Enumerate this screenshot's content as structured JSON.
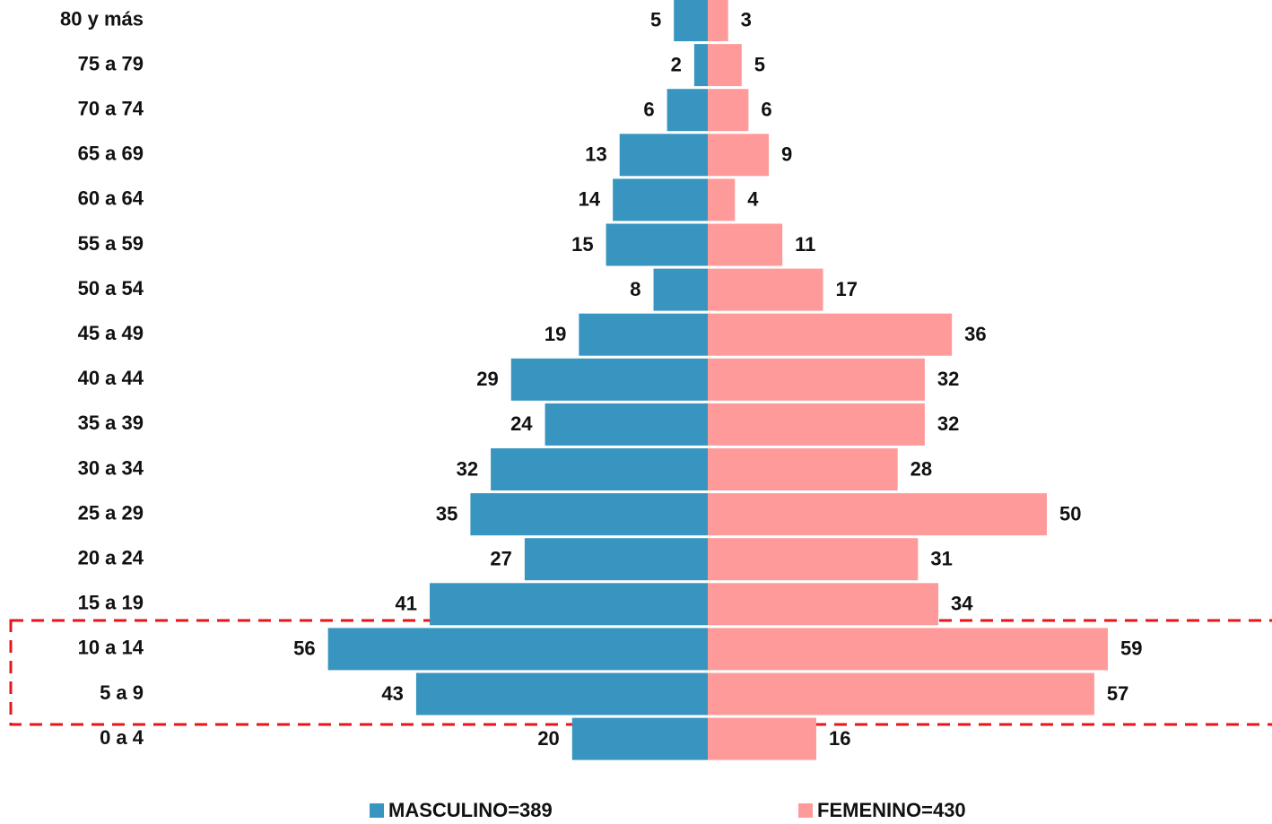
{
  "chart_data": {
    "type": "pyramid",
    "categories": [
      "80 y más",
      "75 a 79",
      "70 a 74",
      "65 a 69",
      "60 a 64",
      "55 a 59",
      "50 a 54",
      "45 a 49",
      "40 a 44",
      "35 a 39",
      "30 a 34",
      "25 a 29",
      "20 a 24",
      "15 a 19",
      "10 a 14",
      "5 a 9",
      "0 a 4"
    ],
    "series": [
      {
        "name": "MASCULINO=389",
        "color": "#3795bf",
        "values": [
          5,
          2,
          6,
          13,
          14,
          15,
          8,
          19,
          29,
          24,
          32,
          35,
          27,
          41,
          56,
          43,
          20
        ]
      },
      {
        "name": "FEMENINO=430",
        "color": "#ff9a9a",
        "values": [
          3,
          5,
          6,
          9,
          4,
          11,
          17,
          36,
          32,
          32,
          28,
          50,
          31,
          34,
          59,
          57,
          16
        ]
      }
    ]
  }
}
